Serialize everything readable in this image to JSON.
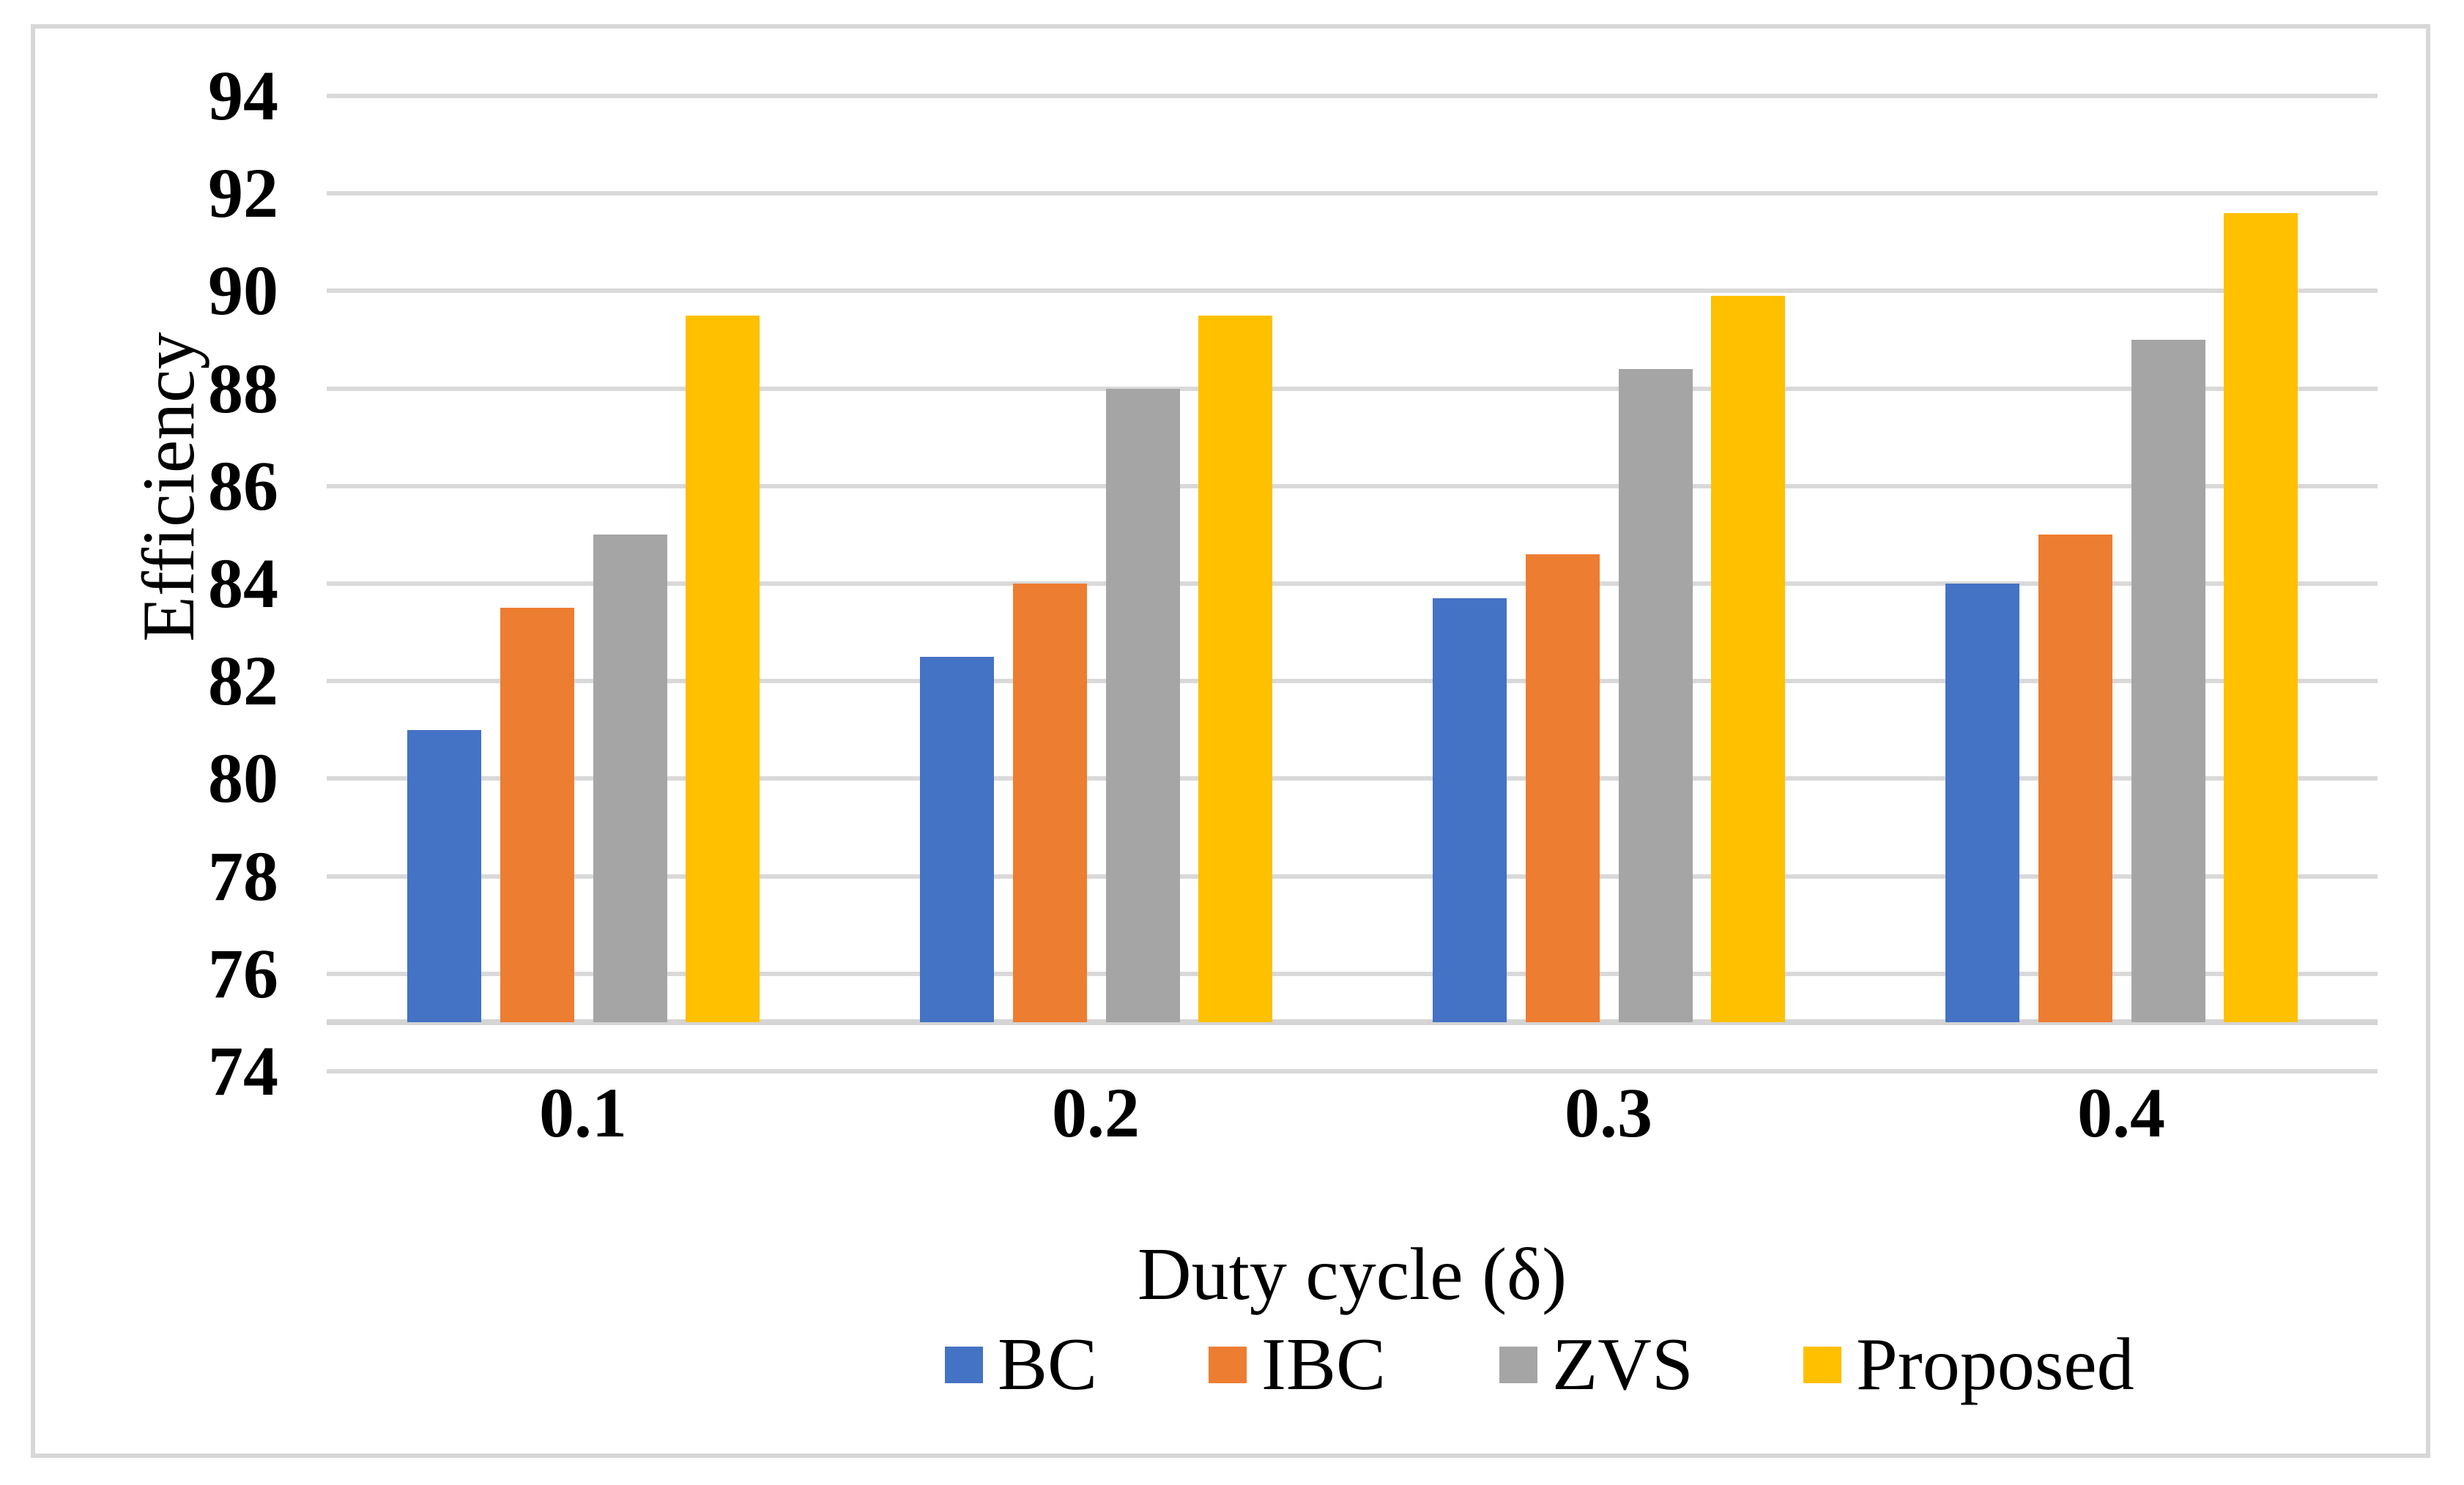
{
  "chart_data": {
    "type": "bar",
    "title": "",
    "xlabel": "Duty cycle (δ)",
    "ylabel": "Efficiency",
    "categories": [
      "0.1",
      "0.2",
      "0.3",
      "0.4"
    ],
    "series": [
      {
        "name": "BC",
        "color": "#4472C4",
        "values": [
          81.0,
          82.5,
          83.7,
          84.0
        ]
      },
      {
        "name": "IBC",
        "color": "#ED7D31",
        "values": [
          83.5,
          84.0,
          84.6,
          85.0
        ]
      },
      {
        "name": "ZVS",
        "color": "#A5A5A5",
        "values": [
          85.0,
          88.0,
          88.4,
          89.0
        ]
      },
      {
        "name": "Proposed",
        "color": "#FFC000",
        "values": [
          89.5,
          89.5,
          89.9,
          91.6
        ]
      }
    ],
    "ylim": [
      74,
      94
    ],
    "yticks": [
      74,
      76,
      78,
      80,
      82,
      84,
      86,
      88,
      90,
      92,
      94
    ],
    "bar_base_value": 75,
    "grid": true,
    "gridline_color": "#d9d9d9",
    "baseline_color": "#d4d4d4",
    "legend_position": "bottom",
    "frame_color": "#d7d7d7"
  }
}
